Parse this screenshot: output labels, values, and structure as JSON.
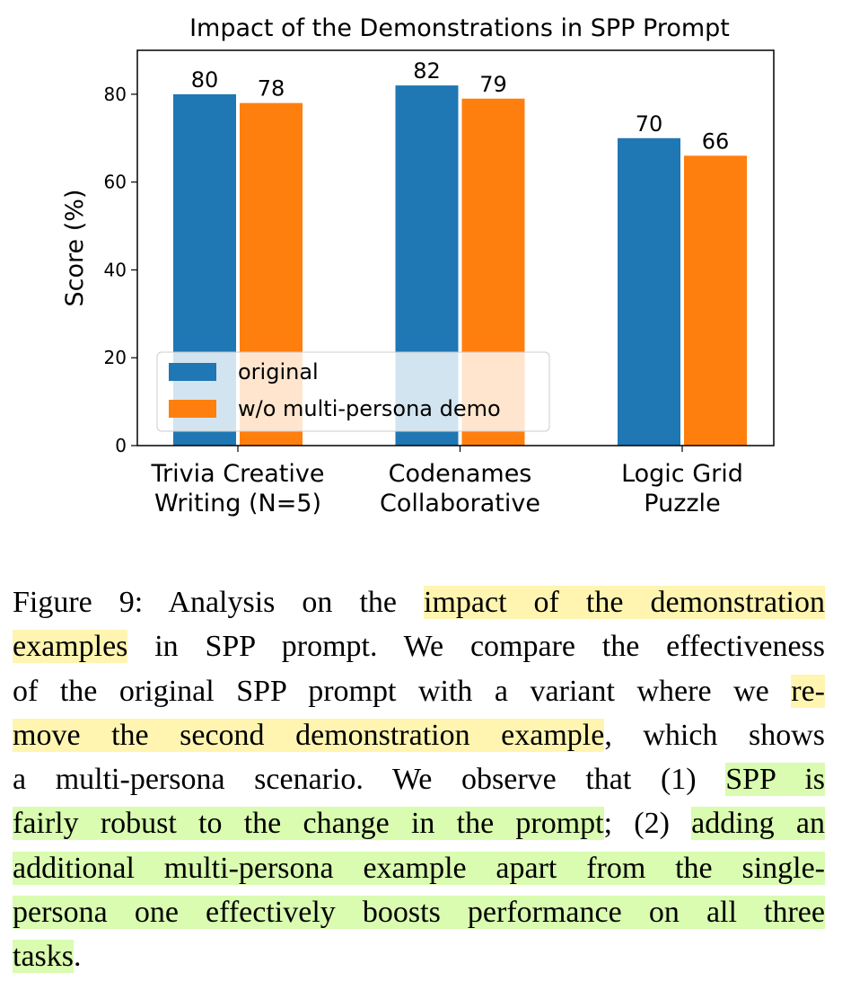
{
  "chart_data": {
    "type": "bar",
    "title": "Impact of the Demonstrations in SPP Prompt",
    "ylabel": "Score (%)",
    "categories": [
      [
        "Trivia Creative",
        "Writing (N=5)"
      ],
      [
        "Codenames",
        "Collaborative"
      ],
      [
        "Logic Grid",
        "Puzzle"
      ]
    ],
    "series": [
      {
        "name": "original",
        "color": "#1f77b4",
        "values": [
          80,
          82,
          70
        ]
      },
      {
        "name": "w/o multi-persona demo",
        "color": "#ff7f0e",
        "values": [
          78,
          79,
          66
        ]
      }
    ],
    "ylim": [
      0,
      90
    ],
    "yticks": [
      0,
      20,
      40,
      60,
      80
    ],
    "legend": "lower left"
  },
  "caption": {
    "lines": [
      [
        {
          "text": "Figure 9: Analysis on the "
        },
        {
          "text": "impact of the demonstration",
          "highlight": "#fff5b1"
        }
      ],
      [
        {
          "text": "examples",
          "highlight": "#fff5b1"
        },
        {
          "text": " in SPP prompt. We compare the effectiveness"
        }
      ],
      [
        {
          "text": "of the original SPP prompt with a variant where we "
        },
        {
          "text": "re-",
          "highlight": "#fff5b1"
        }
      ],
      [
        {
          "text": "move the second demonstration example",
          "highlight": "#fff5b1"
        },
        {
          "text": ", which shows"
        }
      ],
      [
        {
          "text": "a multi-persona scenario. We observe that (1) "
        },
        {
          "text": "SPP is",
          "highlight": "#d9fcb0"
        }
      ],
      [
        {
          "text": "fairly robust to the change in the prompt",
          "highlight": "#d9fcb0"
        },
        {
          "text": "; (2) "
        },
        {
          "text": "adding an",
          "highlight": "#d9fcb0"
        }
      ],
      [
        {
          "text": "additional multi-persona example apart from the single-",
          "highlight": "#d9fcb0"
        }
      ],
      [
        {
          "text": "persona one effectively boosts performance on all three",
          "highlight": "#d9fcb0"
        }
      ],
      [
        {
          "text": "tasks",
          "highlight": "#d9fcb0"
        },
        {
          "text": "."
        }
      ]
    ]
  }
}
